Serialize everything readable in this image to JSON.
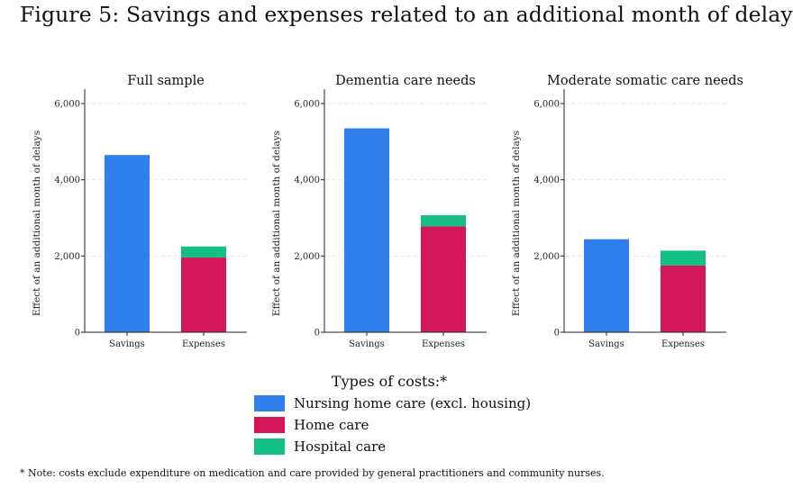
{
  "figure_title": "Figure 5: Savings and expenses related to an additional month of delay",
  "colors": {
    "nursing_home": "#2f80ec",
    "home_care": "#d4175a",
    "hospital_care": "#13bf82"
  },
  "legend": {
    "title": "Types of costs:*",
    "items": [
      {
        "label": "Nursing home care (excl. housing)",
        "color": "#2f80ec"
      },
      {
        "label": "Home care",
        "color": "#d4175a"
      },
      {
        "label": "Hospital care",
        "color": "#13bf82"
      }
    ]
  },
  "note": "* Note: costs exclude expenditure on medication and care provided by general practitioners and community nurses.",
  "chart_data": [
    {
      "type": "bar",
      "title": "Full sample",
      "ylabel": "Effect of an additional month of delays",
      "categories": [
        "Savings",
        "Expenses"
      ],
      "ylim": [
        0,
        6000
      ],
      "yticks": [
        0,
        2000,
        4000,
        6000
      ],
      "ytick_labels": [
        "0",
        "2,000",
        "4,000",
        "6,000"
      ],
      "series": [
        {
          "name": "Nursing home care (excl. housing)",
          "values": [
            4650,
            0
          ]
        },
        {
          "name": "Home care",
          "values": [
            0,
            1960
          ]
        },
        {
          "name": "Hospital care",
          "values": [
            0,
            290
          ]
        }
      ]
    },
    {
      "type": "bar",
      "title": "Dementia care needs",
      "ylabel": "Effect of an additional month of delays",
      "categories": [
        "Savings",
        "Expenses"
      ],
      "ylim": [
        0,
        6000
      ],
      "yticks": [
        0,
        2000,
        4000,
        6000
      ],
      "ytick_labels": [
        "0",
        "2,000",
        "4,000",
        "6,000"
      ],
      "series": [
        {
          "name": "Nursing home care (excl. housing)",
          "values": [
            5350,
            0
          ]
        },
        {
          "name": "Home care",
          "values": [
            0,
            2780
          ]
        },
        {
          "name": "Hospital care",
          "values": [
            0,
            290
          ]
        }
      ]
    },
    {
      "type": "bar",
      "title": "Moderate somatic care needs",
      "ylabel": "Effect of an additional month of delays",
      "categories": [
        "Savings",
        "Expenses"
      ],
      "ylim": [
        0,
        6000
      ],
      "yticks": [
        0,
        2000,
        4000,
        6000
      ],
      "ytick_labels": [
        "0",
        "2,000",
        "4,000",
        "6,000"
      ],
      "series": [
        {
          "name": "Nursing home care (excl. housing)",
          "values": [
            2440,
            0
          ]
        },
        {
          "name": "Home care",
          "values": [
            0,
            1750
          ]
        },
        {
          "name": "Hospital care",
          "values": [
            0,
            390
          ]
        }
      ]
    }
  ]
}
